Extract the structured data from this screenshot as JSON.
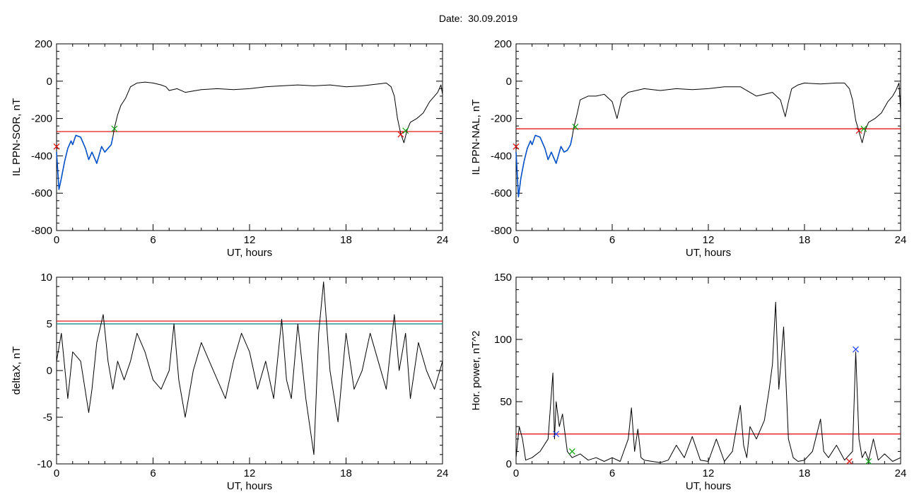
{
  "header": {
    "date_label": "Date:",
    "date_value": "30.09.2019"
  },
  "colors": {
    "trace": "#000000",
    "highlight": "#0050c8",
    "threshold": "#e00000",
    "threshold2": "#008080",
    "marker_green": "#00a000",
    "marker_red": "#e00000",
    "marker_blue": "#2040ff"
  },
  "chart_data": [
    {
      "type": "line",
      "ylabel": "IL PPN-SOR, nT",
      "xlabel": "UT, hours",
      "xlim": [
        0,
        24
      ],
      "ylim": [
        -800,
        200
      ],
      "xticks": [
        0,
        6,
        12,
        18,
        24
      ],
      "yticks": [
        -800,
        -600,
        -400,
        -200,
        0,
        200
      ],
      "threshold": -270,
      "series": [
        {
          "x": [
            0,
            0.15,
            0.3,
            0.5,
            0.7,
            0.9,
            1.0,
            1.2,
            1.5,
            1.8,
            2.0,
            2.2,
            2.5,
            2.8,
            3.0,
            3.2,
            3.4,
            3.5,
            3.6,
            3.8,
            4.0,
            4.3,
            4.6,
            5.0,
            5.5,
            6.0,
            6.5,
            6.8,
            7.0,
            7.5,
            8.0,
            9.0,
            10.0,
            11.0,
            12.0,
            13.0,
            14.0,
            15.0,
            16.0,
            17.0,
            18.0,
            19.0,
            20.0,
            20.5,
            20.8,
            21.0,
            21.2,
            21.4,
            21.6,
            21.8,
            22.0,
            22.4,
            22.8,
            23.2,
            23.5,
            23.7,
            23.9,
            24.0
          ],
          "y": [
            -380,
            -580,
            -520,
            -430,
            -360,
            -320,
            -340,
            -290,
            -300,
            -360,
            -420,
            -380,
            -440,
            -350,
            -380,
            -360,
            -340,
            -300,
            -250,
            -180,
            -130,
            -90,
            -30,
            -10,
            -5,
            -10,
            -20,
            -30,
            -50,
            -40,
            -60,
            -45,
            -40,
            -45,
            -40,
            -30,
            -25,
            -20,
            -25,
            -20,
            -30,
            -25,
            -15,
            -10,
            -30,
            -80,
            -200,
            -280,
            -330,
            -260,
            -220,
            -200,
            -170,
            -110,
            -80,
            -60,
            -20,
            -70
          ]
        },
        {
          "name": "highlight",
          "x": [
            0,
            0.15,
            0.3,
            0.5,
            0.7,
            0.9,
            1.0,
            1.2,
            1.5,
            1.8,
            2.0,
            2.2,
            2.5,
            2.8,
            3.0,
            3.2,
            3.4,
            3.5
          ],
          "y": [
            -380,
            -580,
            -520,
            -430,
            -360,
            -320,
            -340,
            -290,
            -300,
            -360,
            -420,
            -380,
            -440,
            -350,
            -380,
            -360,
            -340,
            -300
          ]
        }
      ],
      "markers": [
        {
          "x": 0,
          "y": -350,
          "color": "red"
        },
        {
          "x": 3.6,
          "y": -255,
          "color": "green"
        },
        {
          "x": 21.4,
          "y": -285,
          "color": "red"
        },
        {
          "x": 21.7,
          "y": -265,
          "color": "green"
        }
      ]
    },
    {
      "type": "line",
      "ylabel": "IL PPN-NAL, nT",
      "xlabel": "UT, hours",
      "xlim": [
        0,
        24
      ],
      "ylim": [
        -800,
        200
      ],
      "xticks": [
        0,
        6,
        12,
        18,
        24
      ],
      "yticks": [
        -800,
        -600,
        -400,
        -200,
        0,
        200
      ],
      "threshold": -255,
      "series": [
        {
          "x": [
            0,
            0.15,
            0.3,
            0.5,
            0.7,
            0.9,
            1.0,
            1.2,
            1.5,
            1.8,
            2.0,
            2.2,
            2.5,
            2.8,
            3.0,
            3.2,
            3.4,
            3.5,
            3.6,
            3.8,
            4.0,
            4.5,
            5.0,
            5.5,
            6.0,
            6.3,
            6.6,
            7.0,
            8.0,
            9.0,
            10.0,
            11.0,
            12.0,
            13.0,
            14.0,
            15.0,
            16.0,
            16.5,
            16.8,
            17.0,
            17.2,
            17.6,
            18.0,
            19.0,
            20.0,
            20.5,
            20.8,
            21.0,
            21.2,
            21.4,
            21.6,
            21.8,
            22.0,
            22.4,
            22.8,
            23.2,
            23.5,
            23.7,
            23.9,
            24.0
          ],
          "y": [
            -380,
            -620,
            -520,
            -430,
            -360,
            -320,
            -340,
            -290,
            -300,
            -360,
            -420,
            -380,
            -440,
            -350,
            -380,
            -370,
            -340,
            -300,
            -250,
            -180,
            -100,
            -80,
            -80,
            -70,
            -110,
            -200,
            -90,
            -60,
            -40,
            -50,
            -40,
            -45,
            -40,
            -30,
            -30,
            -80,
            -60,
            -100,
            -190,
            -110,
            -40,
            -20,
            -10,
            -15,
            -10,
            -10,
            -40,
            -100,
            -210,
            -270,
            -330,
            -260,
            -220,
            -200,
            -170,
            -110,
            -80,
            -50,
            -10,
            -160
          ]
        },
        {
          "name": "highlight",
          "x": [
            0,
            0.15,
            0.3,
            0.5,
            0.7,
            0.9,
            1.0,
            1.2,
            1.5,
            1.8,
            2.0,
            2.2,
            2.5,
            2.8,
            3.0,
            3.2,
            3.4,
            3.5
          ],
          "y": [
            -380,
            -620,
            -520,
            -430,
            -360,
            -320,
            -340,
            -290,
            -300,
            -360,
            -420,
            -380,
            -440,
            -350,
            -380,
            -370,
            -340,
            -300
          ]
        }
      ],
      "markers": [
        {
          "x": 0,
          "y": -350,
          "color": "red"
        },
        {
          "x": 3.7,
          "y": -245,
          "color": "green"
        },
        {
          "x": 21.4,
          "y": -265,
          "color": "red"
        },
        {
          "x": 21.7,
          "y": -255,
          "color": "green"
        }
      ]
    },
    {
      "type": "line",
      "ylabel": "deltaX, nT",
      "xlabel": "UT, hours",
      "xlim": [
        0,
        24
      ],
      "ylim": [
        -10,
        10
      ],
      "xticks": [
        0,
        6,
        12,
        18,
        24
      ],
      "yticks": [
        -10,
        -5,
        0,
        5,
        10
      ],
      "threshold": 5.3,
      "threshold2": 5.0,
      "series": [
        {
          "x": [
            0,
            0.3,
            0.7,
            1.0,
            1.5,
            2.0,
            2.2,
            2.5,
            2.9,
            3.2,
            3.5,
            3.8,
            4.2,
            4.6,
            5.0,
            5.5,
            6.0,
            6.5,
            7.0,
            7.3,
            7.6,
            8.0,
            8.5,
            9.0,
            9.5,
            10.0,
            10.5,
            11.0,
            11.5,
            12.0,
            12.5,
            13.0,
            13.5,
            14.0,
            14.3,
            14.6,
            15.0,
            15.5,
            16.0,
            16.3,
            16.6,
            17.0,
            17.5,
            18.0,
            18.5,
            19.0,
            19.5,
            20.0,
            20.5,
            21.0,
            21.3,
            21.7,
            22.0,
            22.5,
            23.0,
            23.5,
            24.0
          ],
          "y": [
            1,
            4,
            -3,
            2,
            1,
            -4.5,
            -2,
            3,
            6,
            1,
            -2,
            1,
            -1,
            1,
            4,
            2,
            -1,
            -2,
            0,
            5,
            -1,
            -5,
            0,
            3,
            1,
            -1,
            -3,
            1,
            4,
            2,
            -2,
            1,
            -3,
            5.5,
            -1,
            -3,
            5,
            -3,
            -9,
            4,
            9.5,
            0,
            -5.5,
            4,
            -2,
            0,
            4,
            1,
            -2,
            6,
            0,
            4,
            -3,
            3,
            0,
            -2,
            1
          ]
        }
      ]
    },
    {
      "type": "line",
      "ylabel": "Hor. power, nT^2",
      "xlabel": "UT, hours",
      "xlim": [
        0,
        24
      ],
      "ylim": [
        0,
        150
      ],
      "xticks": [
        0,
        6,
        12,
        18,
        24
      ],
      "yticks": [
        0,
        50,
        100,
        150
      ],
      "threshold": 24,
      "series": [
        {
          "x": [
            0,
            0.2,
            0.4,
            0.6,
            1.0,
            1.5,
            2.0,
            2.3,
            2.4,
            2.5,
            2.7,
            2.9,
            3.2,
            3.5,
            4.0,
            4.5,
            5.0,
            5.5,
            6.0,
            6.5,
            7.0,
            7.2,
            7.4,
            7.6,
            7.8,
            8.0,
            8.5,
            9.0,
            9.5,
            10.0,
            10.5,
            11.0,
            11.5,
            12.0,
            12.5,
            13.0,
            13.5,
            14.0,
            14.2,
            14.4,
            14.6,
            15.0,
            15.5,
            15.8,
            16.0,
            16.2,
            16.4,
            16.7,
            17.0,
            17.3,
            17.6,
            18.0,
            18.5,
            19.0,
            19.2,
            19.5,
            20.0,
            20.5,
            21.0,
            21.2,
            21.4,
            21.6,
            21.8,
            22.0,
            22.3,
            22.6,
            23.0,
            23.5,
            24.0
          ],
          "y": [
            5,
            30,
            20,
            3,
            5,
            10,
            20,
            73,
            20,
            50,
            30,
            40,
            10,
            5,
            8,
            3,
            5,
            2,
            5,
            2,
            20,
            45,
            10,
            28,
            5,
            3,
            2,
            1,
            3,
            15,
            5,
            22,
            3,
            2,
            20,
            2,
            10,
            47,
            15,
            5,
            30,
            20,
            35,
            60,
            80,
            130,
            60,
            110,
            20,
            5,
            2,
            3,
            10,
            36,
            10,
            5,
            15,
            3,
            10,
            90,
            20,
            5,
            10,
            3,
            20,
            3,
            8,
            2,
            5
          ]
        }
      ],
      "markers": [
        {
          "x": 2.5,
          "y": 24,
          "color": "blue"
        },
        {
          "x": 3.5,
          "y": 10,
          "color": "green"
        },
        {
          "x": 21.2,
          "y": 92,
          "color": "blue"
        },
        {
          "x": 20.8,
          "y": 2,
          "color": "red"
        },
        {
          "x": 22.0,
          "y": 2,
          "color": "green"
        }
      ]
    }
  ]
}
